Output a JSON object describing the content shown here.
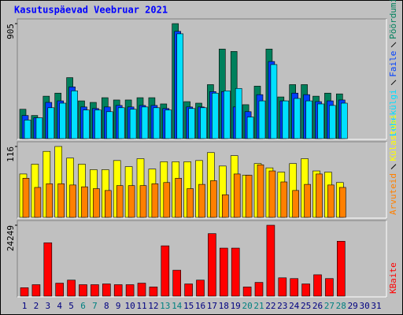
{
  "title": "Kasutuspäevad Veebruar 2021",
  "chart_data": [
    {
      "type": "bar",
      "ylim": [
        0,
        905
      ],
      "yticks": [
        905
      ],
      "series": [
        {
          "name": "Pöördumisi",
          "color": "#00805c",
          "values": [
            231,
            182,
            334,
            358,
            480,
            297,
            285,
            322,
            304,
            304,
            322,
            322,
            273,
            905,
            291,
            279,
            425,
            705,
            686,
            267,
            413,
            705,
            328,
            425,
            425,
            334,
            358,
            352,
            null,
            null,
            null
          ]
        },
        {
          "name": "Faile",
          "color": "#0040ff",
          "values": [
            182,
            164,
            285,
            297,
            407,
            249,
            237,
            249,
            261,
            249,
            261,
            261,
            237,
            844,
            249,
            249,
            370,
            370,
            249,
            212,
            346,
            607,
            297,
            358,
            346,
            291,
            297,
            304,
            null,
            null,
            null
          ]
        },
        {
          "name": "Lehekülgi",
          "color": "#00e0ff",
          "values": [
            146,
            164,
            243,
            279,
            376,
            225,
            225,
            212,
            243,
            231,
            249,
            243,
            225,
            825,
            237,
            243,
            358,
            376,
            395,
            170,
            297,
            583,
            297,
            316,
            297,
            273,
            261,
            279,
            null,
            null,
            null
          ]
        }
      ]
    },
    {
      "type": "bar",
      "ylim": [
        0,
        116
      ],
      "yticks": [
        116
      ],
      "series": [
        {
          "name": "Külastusi",
          "color": "#ffff00",
          "values": [
            71,
            87,
            108,
            116,
            97,
            87,
            78,
            78,
            93,
            83,
            96,
            79,
            91,
            91,
            91,
            93,
            106,
            84,
            101,
            69,
            88,
            81,
            74,
            88,
            96,
            76,
            74,
            57,
            null,
            null,
            null
          ]
        },
        {
          "name": "Arvuteid",
          "color": "#ff8000",
          "values": [
            64,
            49,
            55,
            55,
            53,
            50,
            47,
            44,
            52,
            52,
            52,
            55,
            57,
            64,
            47,
            54,
            60,
            37,
            71,
            69,
            86,
            76,
            58,
            44,
            54,
            71,
            53,
            49,
            null,
            null,
            null
          ]
        }
      ]
    },
    {
      "type": "bar",
      "ylim": [
        0,
        24249
      ],
      "yticks": [
        24249
      ],
      "categories": [
        "1",
        "2",
        "3",
        "4",
        "5",
        "6",
        "7",
        "8",
        "9",
        "10",
        "11",
        "12",
        "13",
        "14",
        "15",
        "16",
        "17",
        "18",
        "19",
        "20",
        "21",
        "22",
        "23",
        "24",
        "25",
        "26",
        "27",
        "28",
        "29",
        "30",
        "31"
      ],
      "category_colors": [
        "#000080",
        "#000080",
        "#000080",
        "#000080",
        "#000080",
        "#008080",
        "#008080",
        "#000080",
        "#000080",
        "#000080",
        "#000080",
        "#000080",
        "#008080",
        "#008080",
        "#000080",
        "#000080",
        "#000080",
        "#000080",
        "#000080",
        "#008080",
        "#008080",
        "#000080",
        "#000080",
        "#000080",
        "#000080",
        "#000080",
        "#008080",
        "#008080",
        "#000080",
        "#000080",
        "#000080"
      ],
      "series": [
        {
          "name": "KBaite",
          "color": "#ff0000",
          "values": [
            2868,
            3911,
            18250,
            4432,
            5475,
            3911,
            3911,
            4171,
            3911,
            3911,
            4432,
            3128,
            17206,
            8864,
            4171,
            5475,
            21378,
            16424,
            16424,
            3128,
            4693,
            24249,
            6257,
            5996,
            4171,
            7300,
            6000,
            18771,
            null,
            null,
            null
          ]
        }
      ]
    }
  ]
}
